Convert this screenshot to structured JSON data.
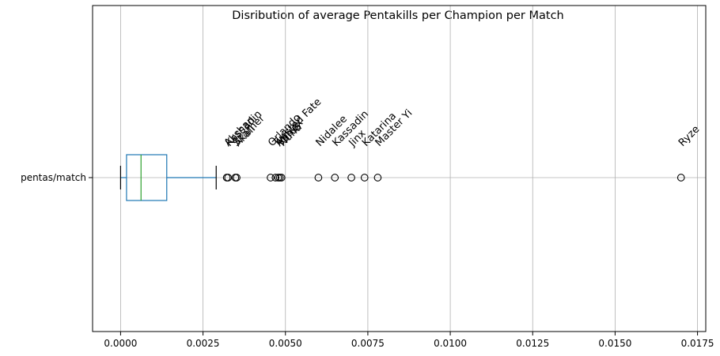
{
  "chart_data": {
    "type": "box",
    "orientation": "horizontal",
    "title": "Disribution of average Pentakills per Champion per Match",
    "category": "pentas/match",
    "xlim": [
      -0.00085,
      0.01775
    ],
    "xticks": [
      "0.0000",
      "0.0025",
      "0.0050",
      "0.0075",
      "0.0100",
      "0.0125",
      "0.0150",
      "0.0175"
    ],
    "xtick_values": [
      0,
      0.0025,
      0.005,
      0.0075,
      0.01,
      0.0125,
      0.015,
      0.0175
    ],
    "grid": true,
    "box": {
      "whisker_low": 0.0,
      "q1": 0.00018,
      "median": 0.00062,
      "q3": 0.0014,
      "whisker_high": 0.0029
    },
    "outliers": [
      {
        "label": "Akshan",
        "value": 0.00322
      },
      {
        "label": "Kassadin",
        "value": 0.00326
      },
      {
        "label": "Skarner",
        "value": 0.00348
      },
      {
        "label": "Akali",
        "value": 0.00352
      },
      {
        "label": "Orlando",
        "value": 0.00455
      },
      {
        "label": "Twisted Fate",
        "value": 0.0047
      },
      {
        "label": "Aatrox",
        "value": 0.00478
      },
      {
        "label": "Varus",
        "value": 0.00483
      },
      {
        "label": "Nunu",
        "value": 0.00488
      },
      {
        "label": "Nidalee",
        "value": 0.006
      },
      {
        "label": "Kassadin",
        "value": 0.0065
      },
      {
        "label": "Jinx",
        "value": 0.007
      },
      {
        "label": "Katarina",
        "value": 0.0074
      },
      {
        "label": "Master Yi",
        "value": 0.0078
      },
      {
        "label": "Ryze",
        "value": 0.017
      }
    ],
    "colors": {
      "box": "#1f77b4",
      "median": "#2ca02c",
      "grid": "#b0b0b0",
      "outlier": "#000000"
    }
  }
}
